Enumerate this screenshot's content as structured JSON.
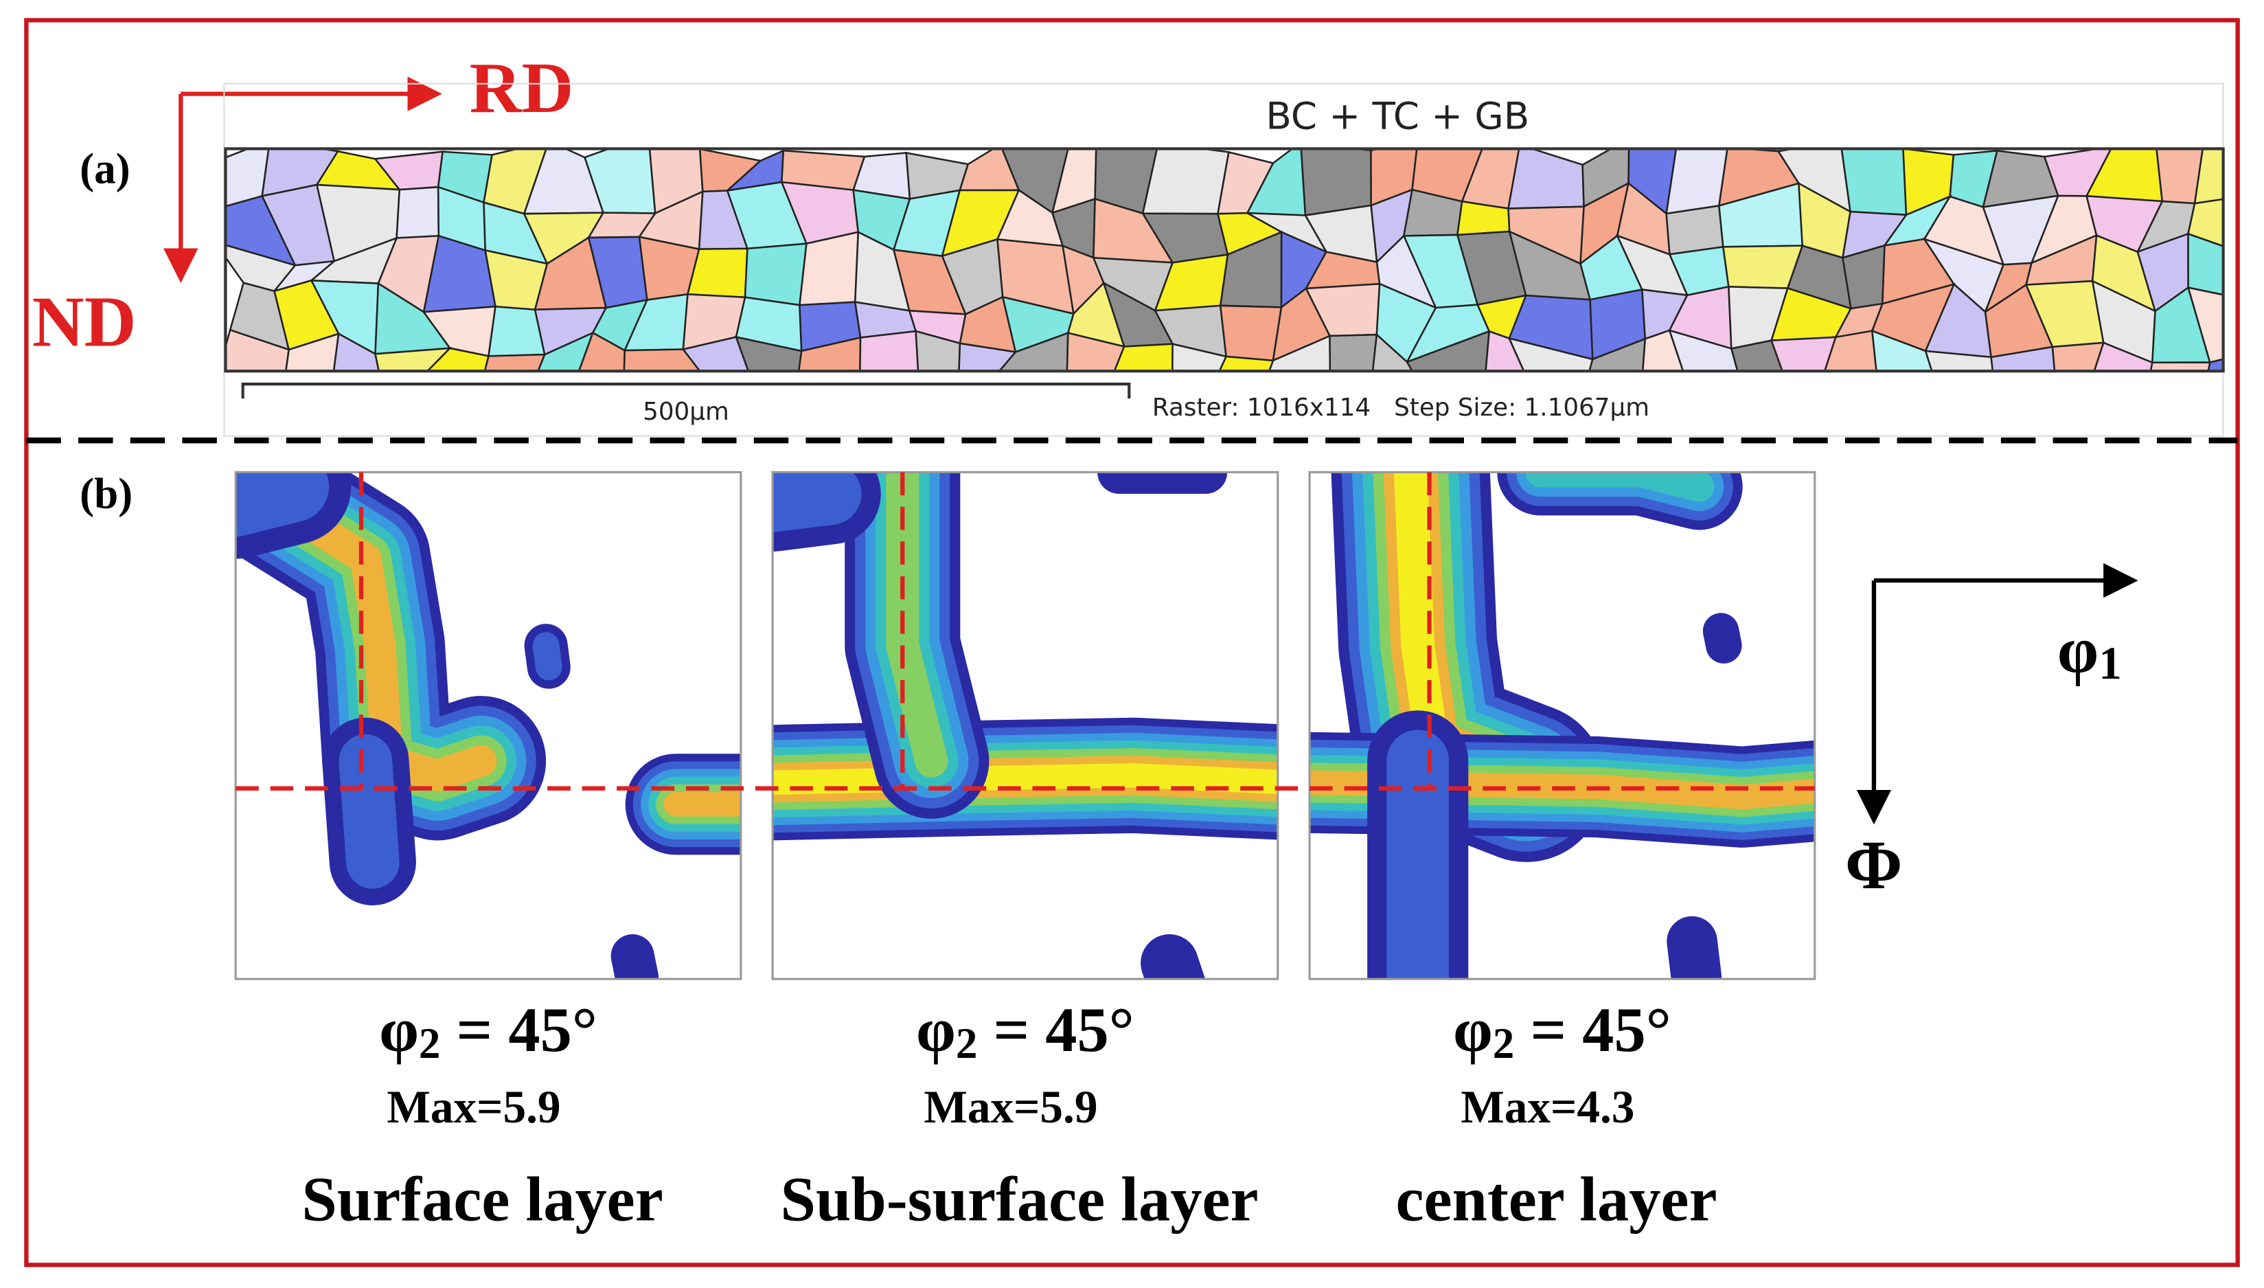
{
  "figure": {
    "panel_a": {
      "label": "(a)",
      "rd": "RD",
      "nd": "ND",
      "map_title": "BC + TC + GB",
      "scale_bar": "500μm",
      "acquisition": "Raster: 1016x114   Step Size: 1.1067μm"
    },
    "panel_b": {
      "label": "(b)",
      "axis_x": "φ",
      "axis_x_sub": "1",
      "axis_y": "Φ",
      "odfs": [
        {
          "angle_symbol": "φ",
          "angle_sub": "2",
          "angle_value": " = 45°",
          "max": "Max=5.9",
          "layer": "Surface layer"
        },
        {
          "angle_symbol": "φ",
          "angle_sub": "2",
          "angle_value": " = 45°",
          "max": "Max=5.9",
          "layer": "Sub-surface layer"
        },
        {
          "angle_symbol": "φ",
          "angle_sub": "2",
          "angle_value": " = 45°",
          "max": "Max=4.3",
          "layer": "center layer"
        }
      ]
    }
  }
}
